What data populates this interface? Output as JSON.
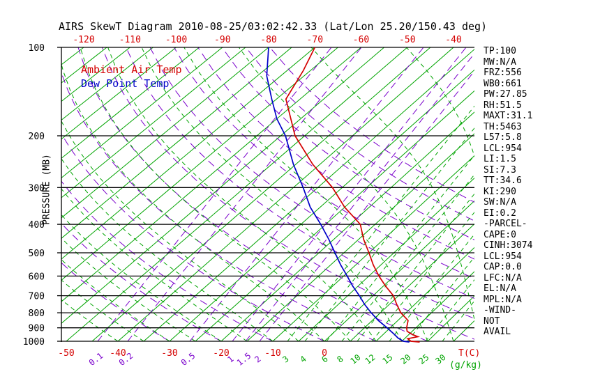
{
  "title": "AIRS SkewT Diagram 2010-08-25/03:02:42.33 (Lat/Lon 25.20/150.43 deg)",
  "legend": {
    "temp": "Ambient Air Temp",
    "dew": "Dew Point Temp"
  },
  "axes": {
    "pressure_label": "PRESSURE (MB)",
    "pressure_ticks": [
      100,
      200,
      300,
      400,
      500,
      600,
      700,
      800,
      900,
      1000
    ],
    "top_temp_ticks": [
      -120,
      -110,
      -100,
      -90,
      -80,
      -70,
      -60,
      -50,
      -40
    ],
    "bottom_temp_ticks": [
      -50,
      -40,
      -30,
      -20,
      -10,
      0
    ],
    "temp_unit_label": "T(C)",
    "mixing_unit_label": "(g/kg)"
  },
  "colors": {
    "red": "#d40000",
    "green": "#00a400",
    "purple": "#7a00cc",
    "blue": "#0000c8",
    "black": "#000000"
  },
  "stats": [
    "TP:100",
    "MW:N/A",
    "FRZ:556",
    "WB0:661",
    "PW:27.85",
    "RH:51.5",
    "MAXT:31.1",
    "TH:5463",
    "L57:5.8",
    "LCL:954",
    "LI:1.5",
    "SI:7.3",
    "TT:34.6",
    "KI:290",
    "SW:N/A",
    "EI:0.2",
    "-PARCEL-",
    "CAPE:0",
    "CINH:3074",
    "LCL:954",
    "CAP:0.0",
    "LFC:N/A",
    "EL:N/A",
    "MPL:N/A",
    "-WIND-",
    "NOT",
    "AVAIL"
  ],
  "chart_data": {
    "type": "line",
    "subtype": "skewt-log-p",
    "title": "AIRS SkewT Diagram 2010-08-25/03:02:42.33 (Lat/Lon 25.20/150.43 deg)",
    "ylabel": "PRESSURE (MB)",
    "xlabel": "T(C)",
    "y_scale": "log",
    "y_range_mb": [
      100,
      1000
    ],
    "x_top_range_c": [
      -120,
      -40
    ],
    "x_bottom_range_c": [
      -50,
      30
    ],
    "isotherms": {
      "min": -120,
      "max": 25,
      "step": 5,
      "unit": "C"
    },
    "mixing_ratio_lines": [
      {
        "value": 0.1,
        "x": 140
      },
      {
        "value": 0.2,
        "x": 183
      },
      {
        "value": 0.5,
        "x": 272
      },
      {
        "value": 1,
        "x": 333
      },
      {
        "value": 1.5,
        "x": 352
      },
      {
        "value": 2,
        "x": 372
      },
      {
        "value": 3,
        "x": 412
      },
      {
        "value": 4,
        "x": 437
      },
      {
        "value": 6,
        "x": 468
      },
      {
        "value": 8,
        "x": 490
      },
      {
        "value": 10,
        "x": 512
      },
      {
        "value": 12,
        "x": 533
      },
      {
        "value": 15,
        "x": 558
      },
      {
        "value": 20,
        "x": 584
      },
      {
        "value": 25,
        "x": 610
      },
      {
        "value": 30,
        "x": 634
      }
    ],
    "dry_adiabat_theta_c": [
      -30,
      -20,
      -10,
      0,
      10,
      20,
      30,
      40,
      50,
      60,
      70,
      80,
      90,
      100
    ],
    "moist_adiabat_surface_temps_c": [
      -40,
      -35,
      -30,
      -25,
      -20,
      -15,
      -10,
      -5,
      0,
      5,
      10,
      15,
      20,
      25,
      30,
      35,
      40,
      45
    ],
    "series": [
      {
        "name": "Ambient Air Temp",
        "color": "#d40000",
        "points_p_t": [
          [
            100,
            -70
          ],
          [
            120,
            -66.5
          ],
          [
            150,
            -63
          ],
          [
            200,
            -52
          ],
          [
            250,
            -41.5
          ],
          [
            300,
            -32
          ],
          [
            350,
            -25
          ],
          [
            400,
            -18
          ],
          [
            450,
            -14
          ],
          [
            500,
            -10
          ],
          [
            550,
            -6.5
          ],
          [
            600,
            -3
          ],
          [
            650,
            0.5
          ],
          [
            700,
            4
          ],
          [
            750,
            6.5
          ],
          [
            800,
            9
          ],
          [
            850,
            12
          ],
          [
            900,
            13.2
          ],
          [
            925,
            14
          ],
          [
            950,
            15.8
          ],
          [
            965,
            17.2
          ],
          [
            980,
            15.6
          ],
          [
            1000,
            16.8
          ],
          [
            1006,
            18.6
          ]
        ]
      },
      {
        "name": "Dew Point Temp",
        "color": "#0000c8",
        "points_p_t": [
          [
            100,
            -80
          ],
          [
            125,
            -73
          ],
          [
            150,
            -66
          ],
          [
            175,
            -60
          ],
          [
            200,
            -54
          ],
          [
            250,
            -45.5
          ],
          [
            300,
            -38
          ],
          [
            350,
            -32
          ],
          [
            400,
            -26
          ],
          [
            450,
            -21
          ],
          [
            500,
            -16.8
          ],
          [
            550,
            -13
          ],
          [
            600,
            -9.3
          ],
          [
            650,
            -6
          ],
          [
            700,
            -2.7
          ],
          [
            750,
            0.2
          ],
          [
            800,
            3.2
          ],
          [
            850,
            6.2
          ],
          [
            900,
            9.4
          ],
          [
            950,
            12.3
          ],
          [
            975,
            13.6
          ],
          [
            1000,
            15.3
          ],
          [
            1006,
            16.6
          ]
        ]
      }
    ]
  }
}
